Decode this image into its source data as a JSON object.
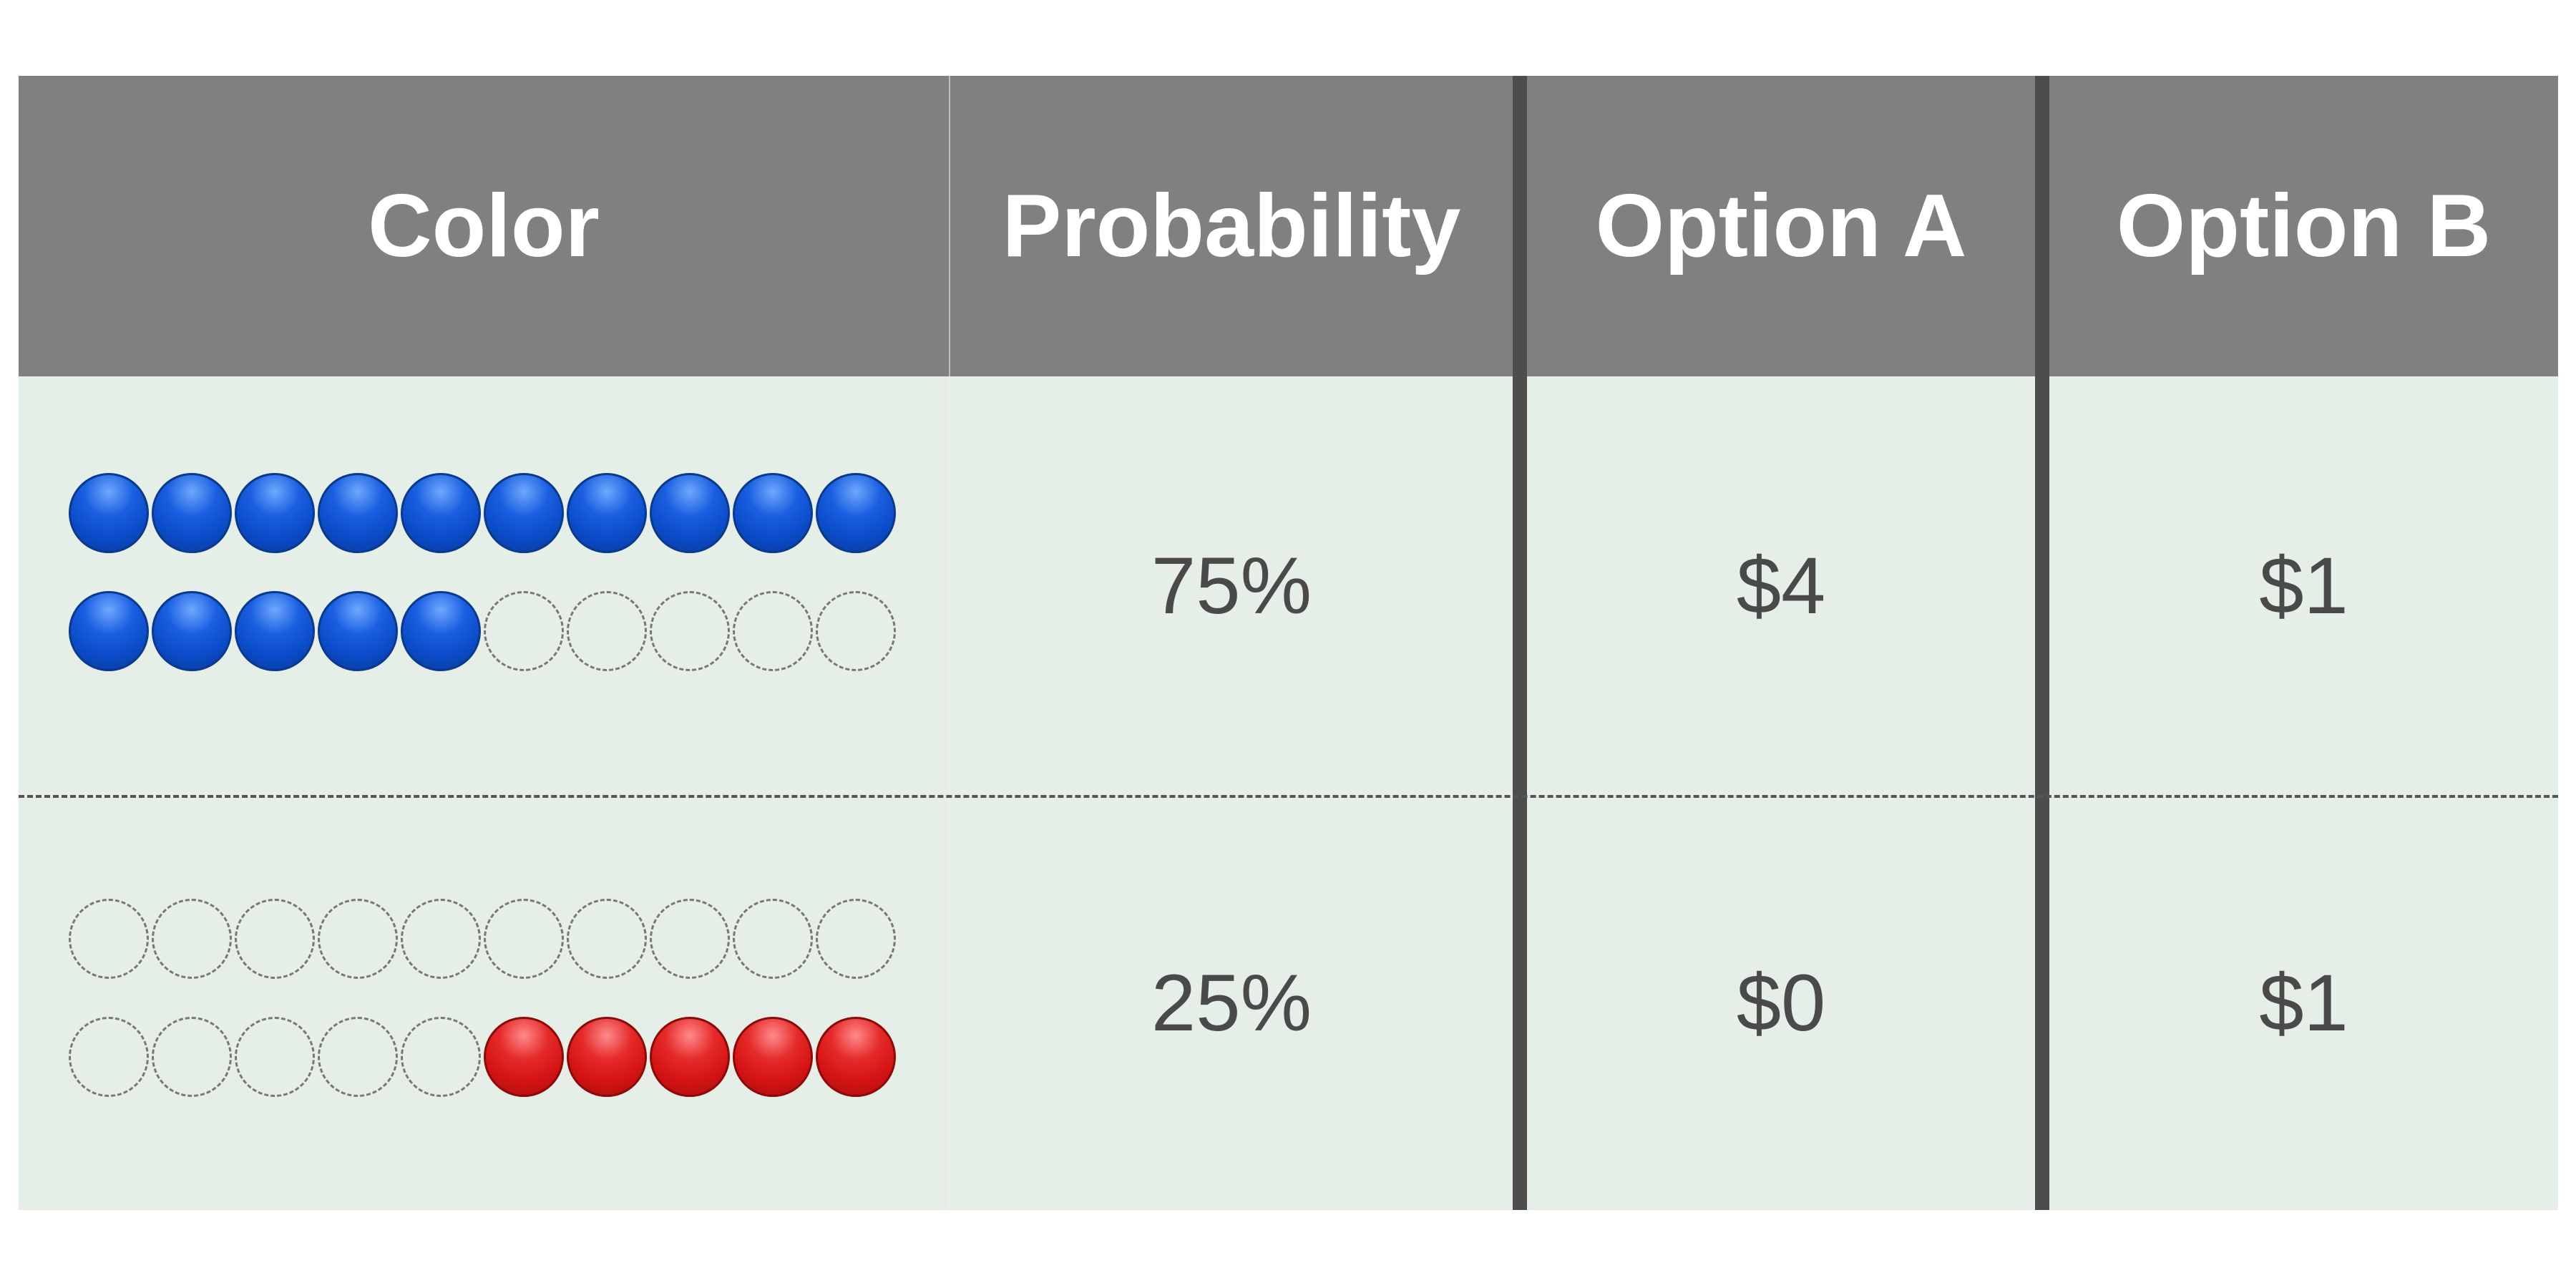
{
  "headers": {
    "color": "Color",
    "probability": "Probability",
    "option_a": "Option A",
    "option_b": "Option B"
  },
  "rows": [
    {
      "balls": [
        [
          "blue",
          "blue",
          "blue",
          "blue",
          "blue",
          "blue",
          "blue",
          "blue",
          "blue",
          "blue"
        ],
        [
          "blue",
          "blue",
          "blue",
          "blue",
          "blue",
          "empty",
          "empty",
          "empty",
          "empty",
          "empty"
        ]
      ],
      "probability": "75%",
      "option_a": "$4",
      "option_b": "$1"
    },
    {
      "balls": [
        [
          "empty",
          "empty",
          "empty",
          "empty",
          "empty",
          "empty",
          "empty",
          "empty",
          "empty",
          "empty"
        ],
        [
          "empty",
          "empty",
          "empty",
          "empty",
          "empty",
          "red",
          "red",
          "red",
          "red",
          "red"
        ]
      ],
      "probability": "25%",
      "option_a": "$0",
      "option_b": "$1"
    }
  ],
  "colors": {
    "header_bg": "#808080",
    "body_bg": "#e5eee7",
    "divider": "#4d4d4d",
    "blue_ball": "#0b4cc9",
    "red_ball": "#d41414"
  }
}
